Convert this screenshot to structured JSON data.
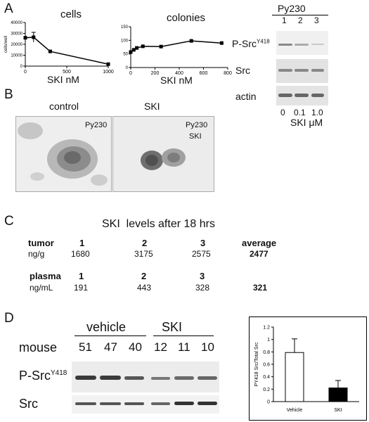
{
  "panelA": {
    "letter": "A",
    "cells_chart": {
      "type": "line",
      "title": "cells",
      "ylabel": "cells/well",
      "xlabel": "SKI nM",
      "x": [
        0,
        100,
        300,
        1000
      ],
      "values": [
        26000,
        26500,
        13500,
        1800
      ],
      "error": [
        0,
        4500,
        0,
        0
      ],
      "xlim": [
        0,
        1000
      ],
      "ylim": [
        0,
        40000
      ],
      "xticks": [
        "0",
        "500",
        "1000"
      ],
      "yticks": [
        "0",
        "10000",
        "20000",
        "30000",
        "40000"
      ]
    },
    "colonies_chart": {
      "type": "line",
      "title": "colonies",
      "ylabel": "colonies/300 cells",
      "xlabel": "SKI nM",
      "x": [
        0,
        25,
        50,
        100,
        250,
        500,
        750
      ],
      "values": [
        57,
        65,
        72,
        78,
        77,
        98,
        90
      ],
      "xlim": [
        0,
        800
      ],
      "ylim": [
        0,
        150
      ],
      "xticks": [
        "0",
        "200",
        "400",
        "600",
        "800"
      ],
      "yticks": [
        "0",
        "50",
        "100",
        "150"
      ]
    },
    "blot": {
      "cell_line": "Py230",
      "lanes": [
        "1",
        "2",
        "3"
      ],
      "rows": [
        "P-Src",
        "Src",
        "actin"
      ],
      "psrc_sup": "Y418",
      "doses": [
        "0",
        "0.1",
        "1.0"
      ],
      "dose_label": "SKI",
      "unit": "μM"
    }
  },
  "panelB": {
    "letter": "B",
    "control_label": "control",
    "ski_label": "SKI",
    "control_tag": "Py230",
    "ski_tag1": "Py230",
    "ski_tag2": "SKI"
  },
  "panelC": {
    "letter": "C",
    "title": "SKI  levels after 18 hrs",
    "tumor": {
      "label": "tumor",
      "unit": "ng/g",
      "cols": [
        "1",
        "2",
        "3"
      ],
      "values": [
        "1680",
        "3175",
        "2575"
      ],
      "avg_label": "average",
      "average": "2477"
    },
    "plasma": {
      "label": "plasma",
      "unit": "ng/mL",
      "cols": [
        "1",
        "2",
        "3"
      ],
      "values": [
        "191",
        "443",
        "328"
      ],
      "average": "321"
    }
  },
  "panelD": {
    "letter": "D",
    "group1": "vehicle",
    "group2": "SKI",
    "mouse_label": "mouse",
    "mice": [
      "51",
      "47",
      "40",
      "12",
      "11",
      "10"
    ],
    "rows": [
      "P-Src",
      "Src"
    ],
    "psrc_sup": "Y418",
    "bar_chart": {
      "type": "bar",
      "categories": [
        "Vehicle",
        "SKI"
      ],
      "values": [
        0.79,
        0.22
      ],
      "error": [
        0.22,
        0.12
      ],
      "ylabel": "PY418 Src/Total Src",
      "ylim": [
        0,
        1.2
      ],
      "yticks": [
        "0",
        "0.2",
        "0.4",
        "0.6",
        "0.8",
        "1",
        "1.2"
      ],
      "colors": [
        "#ffffff",
        "#000000"
      ]
    }
  }
}
